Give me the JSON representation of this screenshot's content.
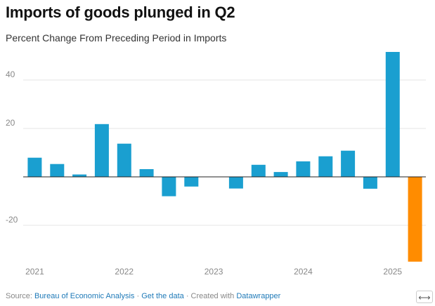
{
  "title": "Imports of goods plunged in Q2",
  "subtitle": "Percent Change From Preceding Period in Imports",
  "footer": {
    "source_prefix": "Source: ",
    "source_link": "Bureau of Economic Analysis",
    "sep1": " · ",
    "data_link": "Get the data",
    "sep2": " · Created with ",
    "tool_link": "Datawrapper"
  },
  "expand_icon": "⟷",
  "colors": {
    "default_bar": "#1a9fd0",
    "highlight_bar": "#ff8c00"
  },
  "chart_data": {
    "type": "bar",
    "x": [
      "2021 Q1",
      "2021 Q2",
      "2021 Q3",
      "2021 Q4",
      "2022 Q1",
      "2022 Q2",
      "2022 Q3",
      "2022 Q4",
      "2023 Q1",
      "2023 Q2",
      "2023 Q3",
      "2023 Q4",
      "2024 Q1",
      "2024 Q2",
      "2024 Q3",
      "2024 Q4",
      "2025 Q1",
      "2025 Q2"
    ],
    "values": [
      7.9,
      5.3,
      1.0,
      21.8,
      13.7,
      3.2,
      -8.0,
      -4.0,
      0,
      -4.8,
      5.0,
      2.0,
      6.4,
      8.5,
      10.8,
      -4.9,
      51.6,
      -35.0
    ],
    "highlight_index": 17,
    "x_tick_labels": [
      "2021",
      "2022",
      "2023",
      "2024",
      "2025"
    ],
    "y_ticks": [
      40,
      20,
      -20
    ],
    "ylim": [
      -36,
      55
    ],
    "grid": true
  }
}
